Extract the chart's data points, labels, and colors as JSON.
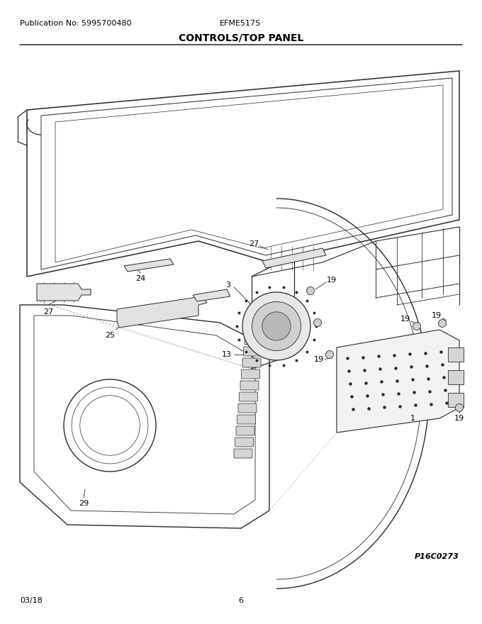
{
  "pub_no": "Publication No: 5995700480",
  "model": "EFME517S",
  "title": "CONTROLS/TOP PANEL",
  "date": "03/18",
  "page": "6",
  "part_code": "P16C0273",
  "bg_color": "#ffffff",
  "line_color": "#2a2a2a",
  "text_color": "#000000",
  "title_fontsize": 10,
  "header_fontsize": 8,
  "label_fontsize": 8.0
}
